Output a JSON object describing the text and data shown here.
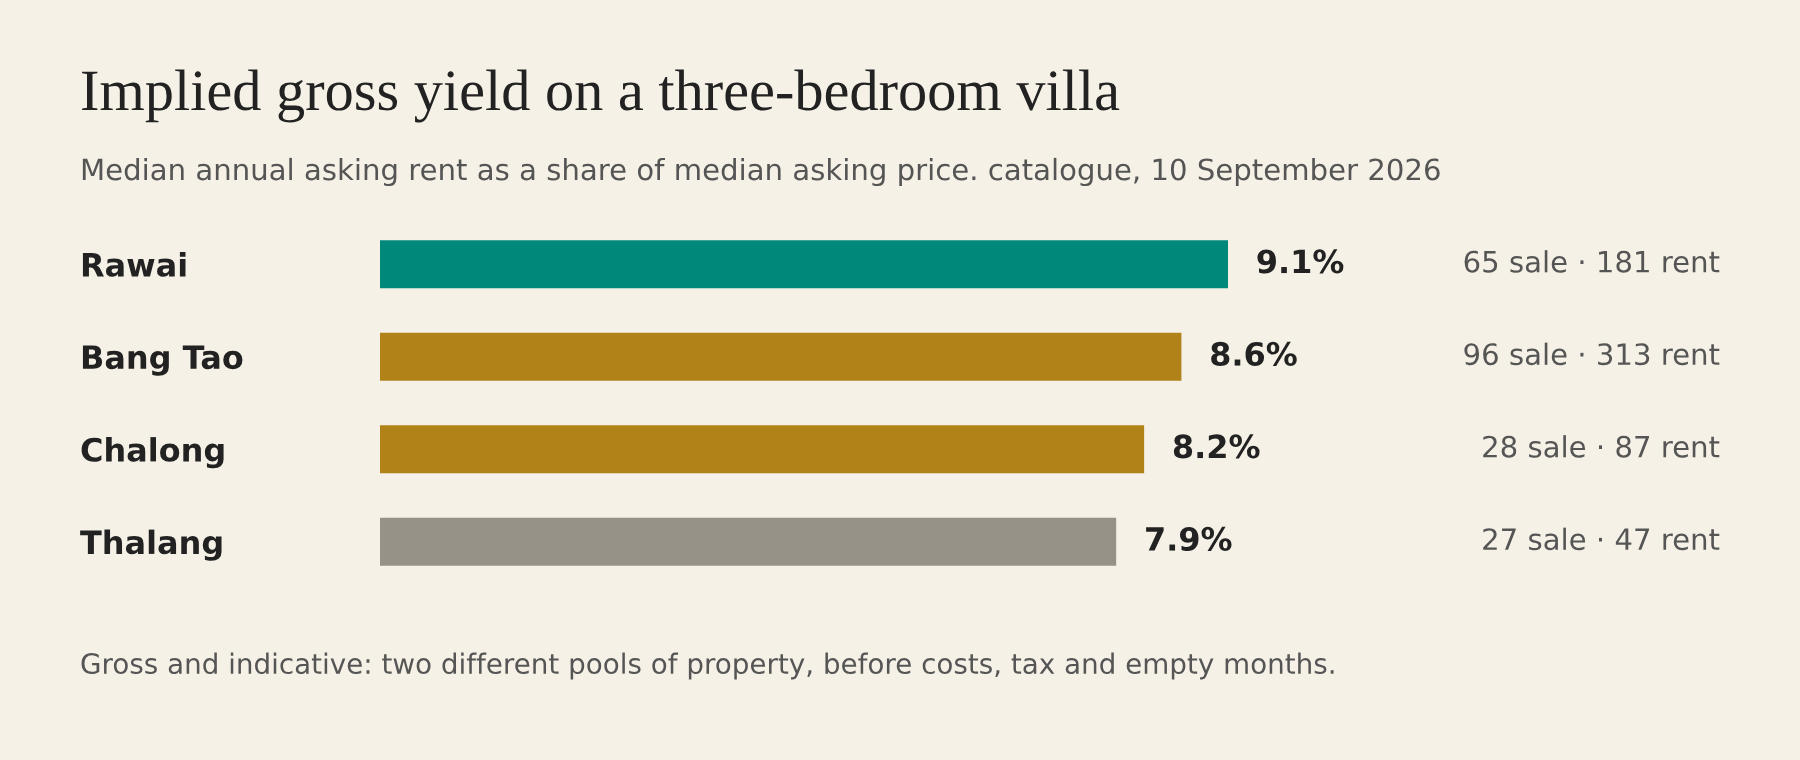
{
  "chart_data": {
    "type": "bar",
    "orientation": "horizontal",
    "title": "Implied gross yield on a three-bedroom villa",
    "subtitle": "Median annual asking rent as a share of median asking price. catalogue, 10 September 2026",
    "categories": [
      "Rawai",
      "Bang Tao",
      "Chalong",
      "Thalang"
    ],
    "values": [
      9.1,
      8.6,
      8.2,
      7.9
    ],
    "colors": [
      "#00887a",
      "#b08218",
      "#b08218",
      "#979288"
    ],
    "value_labels": [
      "9.1%",
      "8.6%",
      "8.2%",
      "7.9%"
    ],
    "tick_labels": "y",
    "grid": false,
    "legend": false,
    "annotations": [
      "65 sale · 181 rent",
      "96 sale · 313 rent",
      "28 sale · 87 rent",
      "27 sale · 47 rent",
      "Gross and indicative: two different pools of property, before costs, tax and empty months."
    ]
  }
}
